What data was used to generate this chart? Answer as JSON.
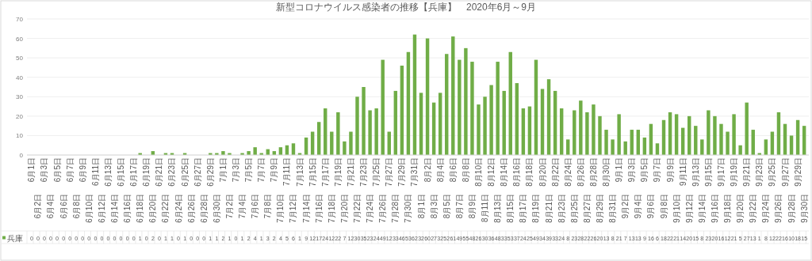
{
  "chart_data": {
    "type": "bar",
    "title": "新型コロナウイルス感染者の推移【兵庫】　2020年6月～9月",
    "categories": [
      "6月1日",
      "6月2日",
      "6月3日",
      "6月4日",
      "6月5日",
      "6月6日",
      "6月7日",
      "6月8日",
      "6月9日",
      "6月10日",
      "6月11日",
      "6月12日",
      "6月13日",
      "6月14日",
      "6月15日",
      "6月16日",
      "6月17日",
      "6月18日",
      "6月19日",
      "6月20日",
      "6月21日",
      "6月22日",
      "6月23日",
      "6月24日",
      "6月25日",
      "6月26日",
      "6月27日",
      "6月28日",
      "6月29日",
      "6月30日",
      "7月1日",
      "7月2日",
      "7月3日",
      "7月4日",
      "7月5日",
      "7月6日",
      "7月7日",
      "7月8日",
      "7月9日",
      "7月10日",
      "7月11日",
      "7月12日",
      "7月13日",
      "7月14日",
      "7月15日",
      "7月16日",
      "7月17日",
      "7月18日",
      "7月19日",
      "7月20日",
      "7月21日",
      "7月22日",
      "7月23日",
      "7月24日",
      "7月25日",
      "7月26日",
      "7月27日",
      "7月28日",
      "7月29日",
      "7月30日",
      "7月31日",
      "8月1日",
      "8月2日",
      "8月3日",
      "8月4日",
      "8月5日",
      "8月6日",
      "8月7日",
      "8月8日",
      "8月9日",
      "8月10日",
      "8月11日",
      "8月12日",
      "8月13日",
      "8月14日",
      "8月15日",
      "8月16日",
      "8月17日",
      "8月18日",
      "8月19日",
      "8月20日",
      "8月21日",
      "8月22日",
      "8月23日",
      "8月24日",
      "8月25日",
      "8月26日",
      "8月27日",
      "8月28日",
      "8月29日",
      "8月30日",
      "8月31日",
      "9月1日",
      "9月2日",
      "9月3日",
      "9月4日",
      "9月5日",
      "9月6日",
      "9月7日",
      "9月8日",
      "9月9日",
      "9月10日",
      "9月11日",
      "9月12日",
      "9月13日",
      "9月14日",
      "9月15日",
      "9月16日",
      "9月17日",
      "9月18日",
      "9月19日",
      "9月20日",
      "9月21日",
      "9月22日",
      "9月23日",
      "9月24日",
      "9月25日",
      "9月26日",
      "9月27日",
      "9月28日",
      "9月29日",
      "9月30日"
    ],
    "series": [
      {
        "name": "兵庫",
        "color": "#70ad47",
        "values": [
          0,
          0,
          0,
          0,
          0,
          0,
          0,
          0,
          0,
          0,
          0,
          0,
          0,
          0,
          0,
          0,
          0,
          1,
          0,
          2,
          0,
          1,
          1,
          0,
          1,
          0,
          0,
          0,
          1,
          1,
          2,
          1,
          0,
          1,
          2,
          4,
          1,
          3,
          2,
          4,
          5,
          6,
          1,
          9,
          12,
          17,
          24,
          12,
          22,
          7,
          12,
          30,
          35,
          23,
          24,
          49,
          12,
          33,
          46,
          53,
          62,
          32,
          60,
          27,
          32,
          52,
          61,
          49,
          55,
          48,
          26,
          30,
          36,
          48,
          33,
          53,
          37,
          24,
          25,
          49,
          34,
          39,
          33,
          24,
          8,
          23,
          28,
          22,
          26,
          20,
          13,
          8,
          21,
          7,
          13,
          13,
          9,
          16,
          6,
          18,
          22,
          21,
          14,
          20,
          15,
          8,
          23,
          20,
          16,
          12,
          21,
          5,
          27,
          13,
          1,
          8,
          12,
          22,
          16,
          10,
          18,
          15
        ]
      }
    ],
    "ylim": [
      0,
      70
    ],
    "yticks": [
      0,
      10,
      20,
      30,
      40,
      50,
      60,
      70
    ],
    "grid": "y",
    "data_labels": true,
    "legend": "bottom"
  }
}
